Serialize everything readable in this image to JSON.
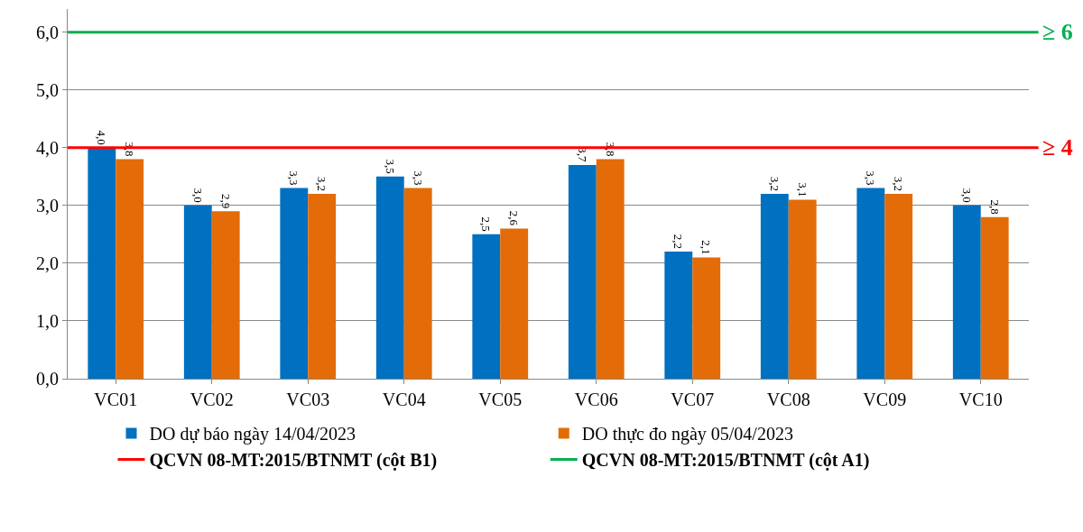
{
  "chart_data": {
    "type": "bar",
    "categories": [
      "VC01",
      "VC02",
      "VC03",
      "VC04",
      "VC05",
      "VC06",
      "VC07",
      "VC08",
      "VC09",
      "VC10"
    ],
    "series": [
      {
        "name": "DO dự báo ngày 14/04/2023",
        "color": "#0070c0",
        "values": [
          4.0,
          3.0,
          3.3,
          3.5,
          2.5,
          3.7,
          2.2,
          3.2,
          3.3,
          3.0
        ],
        "value_labels": [
          "4,0",
          "3,0",
          "3,3",
          "3,5",
          "2,5",
          "3,7",
          "2,2",
          "3,2",
          "3,3",
          "3,0"
        ]
      },
      {
        "name": "DO thực đo ngày 05/04/2023",
        "color": "#e36c09",
        "values": [
          3.8,
          2.9,
          3.2,
          3.3,
          2.6,
          3.8,
          2.1,
          3.1,
          3.2,
          2.8
        ],
        "value_labels": [
          "3,8",
          "2,9",
          "3,2",
          "3,3",
          "2,6",
          "3,8",
          "2,1",
          "3,1",
          "3,2",
          "2,8"
        ]
      }
    ],
    "ylim": [
      0,
      6.4
    ],
    "yticks": [
      {
        "value": 0,
        "label": "0,0"
      },
      {
        "value": 1,
        "label": "1,0"
      },
      {
        "value": 2,
        "label": "2,0"
      },
      {
        "value": 3,
        "label": "3,0"
      },
      {
        "value": 4,
        "label": "4,0"
      },
      {
        "value": 5,
        "label": "5,0"
      },
      {
        "value": 6,
        "label": "6,0"
      }
    ],
    "grid": "y",
    "legend": "bottom",
    "ref_lines": [
      {
        "axis": "y",
        "value": 4,
        "label": "≥ 4",
        "color": "#ff0000"
      },
      {
        "axis": "y",
        "value": 6,
        "label": "≥ 6",
        "color": "#00b050"
      }
    ],
    "annotations": [
      "QCVN 08-MT:2015/BTNMT (cột B1)",
      "QCVN 08-MT:2015/BTNMT (cột A1)"
    ]
  }
}
